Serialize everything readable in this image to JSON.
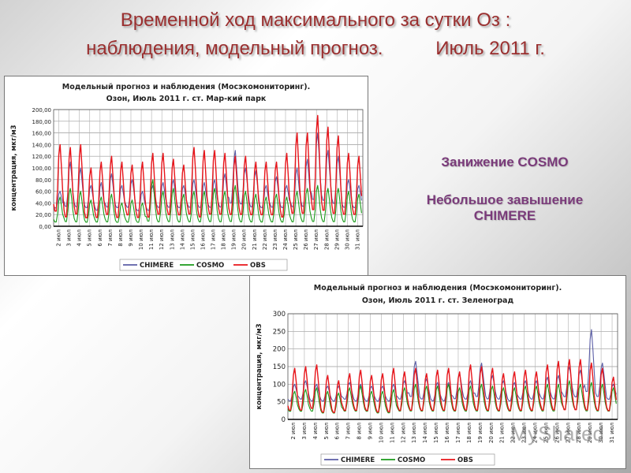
{
  "slide": {
    "title_line1": "Временной ход максимального за сутки Оз :",
    "title_line2": "наблюдения, модельный прогноз.          Июль 2011 г.",
    "callout1": "Занижение COSMO",
    "callout2_line1": "Небольшое завышение",
    "callout2_line2": "CHIMERE"
  },
  "watermark": "MyShared",
  "colors": {
    "chimere": "#5b5ea6",
    "cosmo": "#1a9a1a",
    "obs": "#e8141a",
    "title": "#9a2f2f",
    "callout": "#7a3b7a"
  },
  "chart_data": [
    {
      "type": "line",
      "title": "Модельный прогноз и наблюдения (Мосэкомониторинг).",
      "subtitle": "Озон, Июль 2011 г. ст. Мар-кий парк",
      "ylabel": "концентрация, мкг/м3",
      "xlabel": "",
      "ylim": [
        0,
        200
      ],
      "yticks": [
        "0,00",
        "20,00",
        "40,00",
        "60,00",
        "80,00",
        "100,00",
        "120,00",
        "140,00",
        "160,00",
        "180,00",
        "200,00"
      ],
      "xticks": [
        "2 июл",
        "3 июл",
        "4 июл",
        "5 июл",
        "6 июл",
        "7 июл",
        "8 июл",
        "9 июл",
        "10 июл",
        "11 июл",
        "12 июл",
        "13 июл",
        "14 июл",
        "15 июл",
        "16 июл",
        "17 июл",
        "18 июл",
        "19 июл",
        "20 июл",
        "21 июл",
        "22 июл",
        "23 июл",
        "24 июл",
        "25 июл",
        "26 июл",
        "27 июл",
        "28 июл",
        "29 июл",
        "30 июл",
        "31 июл"
      ],
      "x_start_day": 2,
      "x_end_day": 32,
      "legend": "bottom",
      "grid": true,
      "series": [
        {
          "name": "CHIMERE",
          "color": "#5b5ea6",
          "daily_max": [
            60,
            110,
            100,
            70,
            75,
            90,
            70,
            80,
            60,
            70,
            75,
            80,
            70,
            80,
            75,
            80,
            90,
            130,
            100,
            95,
            70,
            85,
            70,
            100,
            115,
            160,
            130,
            120,
            80,
            70
          ],
          "daily_min": [
            30,
            30,
            30,
            30,
            25,
            30,
            30,
            30,
            25,
            25,
            30,
            30,
            30,
            30,
            30,
            30,
            30,
            35,
            35,
            30,
            30,
            30,
            30,
            30,
            30,
            40,
            40,
            35,
            30,
            30
          ]
        },
        {
          "name": "COSMO",
          "color": "#1a9a1a",
          "daily_max": [
            50,
            65,
            60,
            45,
            50,
            55,
            40,
            45,
            40,
            80,
            60,
            65,
            55,
            60,
            60,
            65,
            60,
            70,
            60,
            55,
            50,
            55,
            50,
            60,
            65,
            70,
            65,
            65,
            60,
            55
          ],
          "daily_min": [
            5,
            5,
            5,
            5,
            5,
            5,
            5,
            5,
            5,
            5,
            5,
            5,
            5,
            5,
            5,
            5,
            5,
            5,
            5,
            5,
            5,
            5,
            5,
            5,
            5,
            5,
            5,
            5,
            5,
            5
          ]
        },
        {
          "name": "OBS",
          "color": "#e8141a",
          "daily_max": [
            140,
            135,
            140,
            100,
            110,
            120,
            110,
            105,
            110,
            125,
            125,
            115,
            105,
            135,
            130,
            130,
            125,
            120,
            120,
            110,
            110,
            110,
            125,
            160,
            160,
            190,
            170,
            155,
            125,
            120
          ],
          "daily_min": [
            20,
            10,
            15,
            10,
            10,
            15,
            10,
            15,
            10,
            10,
            15,
            15,
            15,
            15,
            10,
            15,
            15,
            15,
            15,
            15,
            15,
            15,
            10,
            15,
            15,
            20,
            20,
            15,
            15,
            15
          ]
        }
      ]
    },
    {
      "type": "line",
      "title": "Модельный прогноз и наблюдения (Мосэкомониторинг).",
      "subtitle": "Озон, Июль 2011 г. ст. Зеленоград",
      "ylabel": "концентрация, мкг/м3",
      "xlabel": "",
      "ylim": [
        0,
        300
      ],
      "yticks": [
        "0",
        "50",
        "100",
        "150",
        "200",
        "250",
        "300"
      ],
      "xticks": [
        "2 июл",
        "3 июл",
        "4 июл",
        "5 июл",
        "6 июл",
        "7 июл",
        "8 июл",
        "9 июл",
        "10 июл",
        "11 июл",
        "12 июл",
        "13 июл",
        "14 июл",
        "15 июл",
        "16 июл",
        "17 июл",
        "18 июл",
        "19 июл",
        "20 июл",
        "21 июл",
        "22 июл",
        "23 июл",
        "24 июл",
        "25 июл",
        "26 июл",
        "27 июл",
        "28 июл",
        "29 июл",
        "30 июл",
        "31 июл"
      ],
      "x_start_day": 2,
      "x_end_day": 32,
      "legend": "bottom",
      "grid": true,
      "series": [
        {
          "name": "CHIMERE",
          "color": "#5b5ea6",
          "daily_max": [
            100,
            110,
            100,
            95,
            95,
            105,
            100,
            95,
            95,
            100,
            110,
            165,
            115,
            105,
            105,
            130,
            110,
            160,
            125,
            110,
            105,
            110,
            110,
            120,
            125,
            150,
            140,
            255,
            160,
            100
          ],
          "daily_min": [
            50,
            55,
            50,
            50,
            50,
            55,
            50,
            50,
            50,
            50,
            55,
            60,
            55,
            50,
            50,
            55,
            55,
            60,
            55,
            55,
            50,
            55,
            55,
            55,
            55,
            60,
            60,
            70,
            60,
            55
          ]
        },
        {
          "name": "COSMO",
          "color": "#1a9a1a",
          "daily_max": [
            80,
            85,
            90,
            80,
            75,
            90,
            95,
            80,
            80,
            85,
            90,
            100,
            95,
            95,
            100,
            90,
            95,
            100,
            95,
            90,
            90,
            95,
            95,
            100,
            100,
            110,
            100,
            105,
            100,
            90
          ],
          "daily_min": [
            20,
            20,
            20,
            15,
            15,
            20,
            20,
            20,
            15,
            15,
            20,
            20,
            20,
            20,
            20,
            20,
            20,
            20,
            20,
            20,
            20,
            20,
            20,
            20,
            20,
            25,
            25,
            20,
            20,
            20
          ]
        },
        {
          "name": "OBS",
          "color": "#e8141a",
          "daily_max": [
            145,
            150,
            155,
            125,
            110,
            130,
            140,
            125,
            130,
            145,
            135,
            145,
            130,
            140,
            145,
            135,
            155,
            150,
            145,
            130,
            135,
            140,
            135,
            155,
            165,
            170,
            170,
            160,
            145,
            120
          ],
          "daily_min": [
            20,
            20,
            25,
            15,
            15,
            20,
            20,
            20,
            15,
            15,
            20,
            20,
            20,
            20,
            20,
            20,
            20,
            20,
            20,
            20,
            20,
            20,
            20,
            20,
            20,
            20,
            20,
            20,
            20,
            20
          ]
        }
      ]
    }
  ]
}
